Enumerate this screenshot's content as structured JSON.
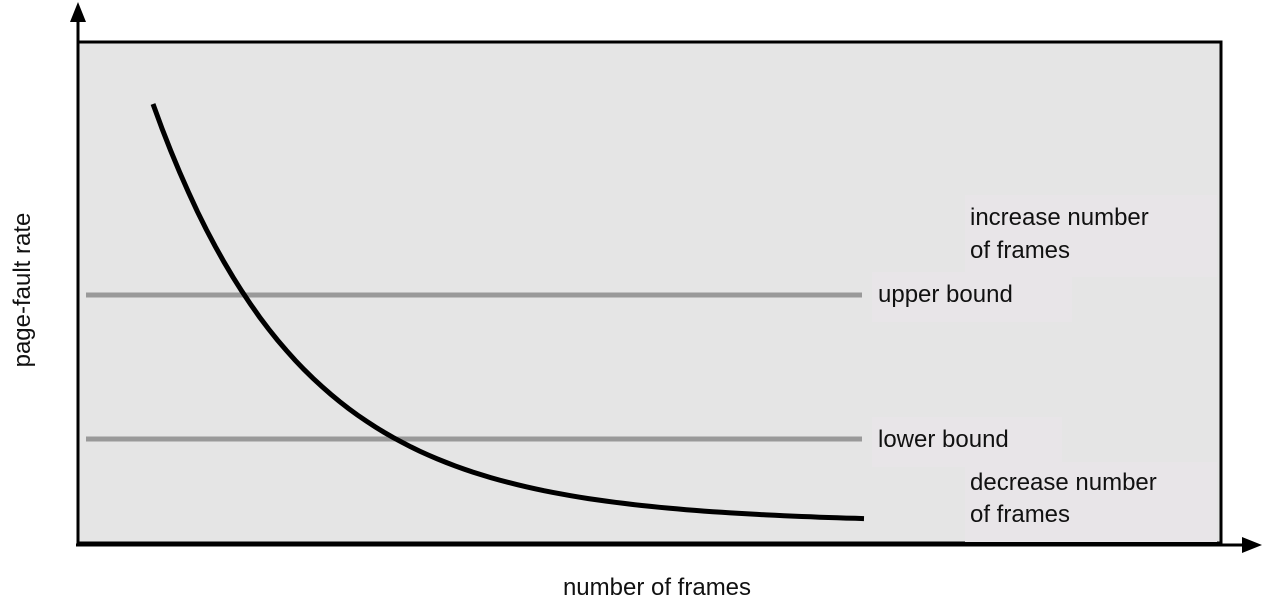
{
  "chart_data": {
    "type": "line",
    "xlabel": "number of frames",
    "ylabel": "page-fault rate",
    "grid": false,
    "curve_style": "decreasing convex curve, no numeric ticks",
    "reference_lines": [
      {
        "label": "upper bound",
        "level": 0.5
      },
      {
        "label": "lower bound",
        "level": 0.21
      }
    ],
    "annotations": [
      {
        "lines": [
          "increase number",
          "of frames"
        ],
        "region": "above upper bound"
      },
      {
        "lines": [
          "decrease number",
          "of frames"
        ],
        "region": "below lower bound"
      }
    ],
    "colors": {
      "plot_background": "#e5e5e5",
      "curve": "#000000",
      "bound_lines": "#999999",
      "label_background": "#e8e5e8"
    }
  }
}
